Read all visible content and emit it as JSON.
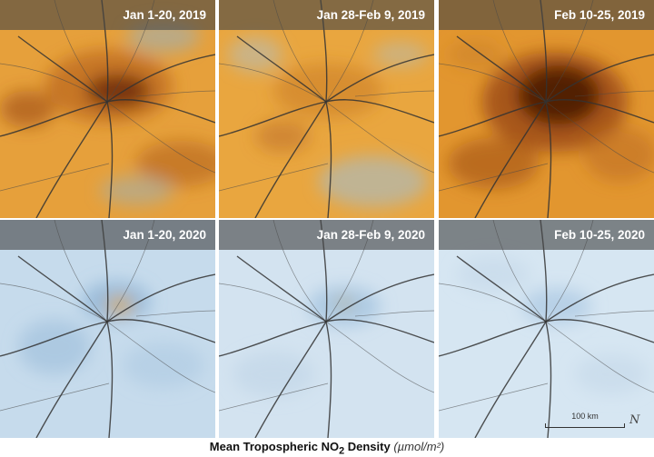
{
  "panels": [
    {
      "label": "Jan 1-20, 2019",
      "theme": "high"
    },
    {
      "label": "Jan 28-Feb 9, 2019",
      "theme": "mid"
    },
    {
      "label": "Feb 10-25, 2019",
      "theme": "peak"
    },
    {
      "label": "Jan 1-20, 2020",
      "theme": "low"
    },
    {
      "label": "Jan 28-Feb 9, 2020",
      "theme": "lower"
    },
    {
      "label": "Feb 10-25, 2020",
      "theme": "lowest"
    }
  ],
  "scale_bar": {
    "label": "100 km"
  },
  "north_arrow": {
    "symbol": "N"
  },
  "legend": {
    "title_prefix": "Mean Tropospheric NO",
    "subscript": "2",
    "title_suffix": " Density",
    "unit": "(µmol/m²)"
  },
  "colors": {
    "high_orange": "#e8a23a",
    "dark_brown": "#5a1f08",
    "low_blue": "#c9ddee",
    "road": "#3a3a3a"
  }
}
